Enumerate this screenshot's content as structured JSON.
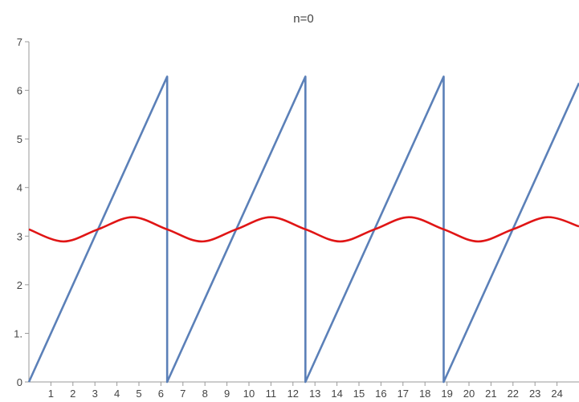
{
  "chart_data": {
    "type": "line",
    "title": "n=0",
    "xlabel": "",
    "ylabel": "",
    "xlim": [
      0,
      25
    ],
    "ylim": [
      0,
      7
    ],
    "grid": false,
    "x_ticks": [
      1,
      2,
      3,
      4,
      5,
      6,
      7,
      8,
      9,
      10,
      11,
      12,
      13,
      14,
      15,
      16,
      17,
      18,
      19,
      20,
      21,
      22,
      23,
      24
    ],
    "y_ticks": [
      {
        "value": 0,
        "label": "0"
      },
      {
        "value": 1,
        "label": "1."
      },
      {
        "value": 2,
        "label": "2"
      },
      {
        "value": 3,
        "label": "3"
      },
      {
        "value": 4,
        "label": "4"
      },
      {
        "value": 5,
        "label": "5"
      },
      {
        "value": 6,
        "label": "6"
      },
      {
        "value": 7,
        "label": "7"
      }
    ],
    "series": [
      {
        "color": "#5b80b8",
        "points": [
          [
            0,
            0
          ],
          [
            6.2832,
            6.2832
          ],
          [
            6.2832,
            0
          ],
          [
            12.5664,
            6.2832
          ],
          [
            12.5664,
            0
          ],
          [
            18.8496,
            6.2832
          ],
          [
            18.8496,
            0
          ],
          [
            25,
            6.15
          ]
        ]
      },
      {
        "color": "#e01515",
        "points": [
          [
            0,
            3.14
          ],
          [
            1.57,
            2.89
          ],
          [
            3.14,
            3.14
          ],
          [
            4.71,
            3.39
          ],
          [
            6.28,
            3.14
          ],
          [
            7.85,
            2.89
          ],
          [
            9.42,
            3.14
          ],
          [
            10.99,
            3.39
          ],
          [
            12.57,
            3.14
          ],
          [
            14.14,
            2.89
          ],
          [
            15.71,
            3.14
          ],
          [
            17.28,
            3.39
          ],
          [
            18.85,
            3.14
          ],
          [
            20.42,
            2.89
          ],
          [
            21.99,
            3.14
          ],
          [
            23.56,
            3.39
          ],
          [
            25,
            3.2
          ]
        ]
      }
    ]
  }
}
